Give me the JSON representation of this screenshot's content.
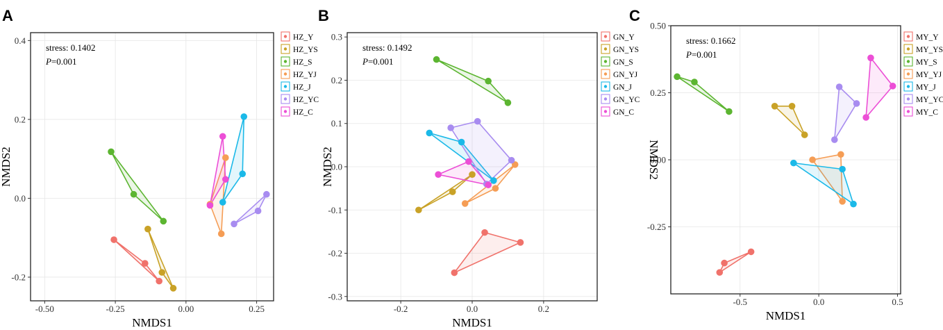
{
  "chart_data": [
    {
      "type": "scatter",
      "panel_label": "A",
      "xlabel": "NMDS1",
      "ylabel": "NMDS2",
      "xlim": [
        -0.55,
        0.31
      ],
      "ylim": [
        -0.26,
        0.42
      ],
      "xticks": [
        -0.5,
        -0.25,
        0.0,
        0.25
      ],
      "xtick_labels": [
        "-0.50",
        "-0.25",
        "0.00",
        "0.25"
      ],
      "yticks": [
        -0.2,
        0.0,
        0.2,
        0.4
      ],
      "ytick_labels": [
        "-0.2",
        "0.0",
        "0.2",
        "0.4"
      ],
      "stress_label": "stress: 0.1402",
      "p_letter": "P",
      "p_value": "=0.001",
      "legend_position": "outside-right-top",
      "series": [
        {
          "name": "HZ_Y",
          "color": "#f0726b",
          "points": [
            [
              -0.255,
              -0.105
            ],
            [
              -0.145,
              -0.165
            ],
            [
              -0.095,
              -0.21
            ]
          ]
        },
        {
          "name": "HZ_YS",
          "color": "#c9a227",
          "points": [
            [
              -0.135,
              -0.078
            ],
            [
              -0.085,
              -0.188
            ],
            [
              -0.045,
              -0.228
            ]
          ]
        },
        {
          "name": "HZ_S",
          "color": "#5cb531",
          "points": [
            [
              -0.265,
              0.118
            ],
            [
              -0.185,
              0.01
            ],
            [
              -0.08,
              -0.058
            ]
          ]
        },
        {
          "name": "HZ_YJ",
          "color": "#f59d55",
          "points": [
            [
              0.14,
              0.103
            ],
            [
              0.125,
              -0.09
            ],
            [
              0.085,
              -0.015
            ]
          ]
        },
        {
          "name": "HZ_J",
          "color": "#1bb9e8",
          "points": [
            [
              0.205,
              0.207
            ],
            [
              0.2,
              0.062
            ],
            [
              0.13,
              -0.01
            ]
          ]
        },
        {
          "name": "HZ_YC",
          "color": "#a88cf0",
          "points": [
            [
              0.285,
              0.01
            ],
            [
              0.255,
              -0.032
            ],
            [
              0.17,
              -0.065
            ]
          ]
        },
        {
          "name": "HZ_C",
          "color": "#ec4fd6",
          "points": [
            [
              0.13,
              0.157
            ],
            [
              0.14,
              0.048
            ],
            [
              0.085,
              -0.018
            ]
          ]
        }
      ]
    },
    {
      "type": "scatter",
      "panel_label": "B",
      "xlabel": "NMDS1",
      "ylabel": "NMDS2",
      "xlim": [
        -0.35,
        0.35
      ],
      "ylim": [
        -0.31,
        0.31
      ],
      "xticks": [
        -0.2,
        0.0,
        0.2
      ],
      "xtick_labels": [
        "-0.2",
        "0.0",
        "0.2"
      ],
      "yticks": [
        -0.3,
        -0.2,
        -0.1,
        0.0,
        0.1,
        0.2,
        0.3
      ],
      "ytick_labels": [
        "-0.3",
        "-0.2",
        "-0.1",
        "0.0",
        "0.1",
        "0.2",
        "0.3"
      ],
      "stress_label": "stress: 0.1492",
      "p_letter": "P",
      "p_value": "=0.001",
      "legend_position": "outside-right-top",
      "series": [
        {
          "name": "GN_Y",
          "color": "#f0726b",
          "points": [
            [
              -0.05,
              -0.245
            ],
            [
              0.035,
              -0.152
            ],
            [
              0.135,
              -0.175
            ]
          ]
        },
        {
          "name": "GN_YS",
          "color": "#c9a227",
          "points": [
            [
              -0.15,
              -0.1
            ],
            [
              -0.055,
              -0.058
            ],
            [
              0.0,
              -0.018
            ]
          ]
        },
        {
          "name": "GN_S",
          "color": "#5cb531",
          "points": [
            [
              -0.1,
              0.248
            ],
            [
              0.045,
              0.198
            ],
            [
              0.1,
              0.148
            ]
          ]
        },
        {
          "name": "GN_YJ",
          "color": "#f59d55",
          "points": [
            [
              0.12,
              0.005
            ],
            [
              0.065,
              -0.05
            ],
            [
              -0.02,
              -0.085
            ]
          ]
        },
        {
          "name": "GN_J",
          "color": "#1bb9e8",
          "points": [
            [
              -0.12,
              0.078
            ],
            [
              -0.03,
              0.057
            ],
            [
              0.06,
              -0.032
            ]
          ]
        },
        {
          "name": "GN_YC",
          "color": "#a88cf0",
          "points": [
            [
              -0.06,
              0.09
            ],
            [
              0.015,
              0.105
            ],
            [
              0.11,
              0.015
            ],
            [
              0.04,
              -0.04
            ]
          ]
        },
        {
          "name": "GN_C",
          "color": "#ec4fd6",
          "points": [
            [
              -0.095,
              -0.018
            ],
            [
              -0.01,
              0.012
            ],
            [
              0.045,
              -0.042
            ]
          ]
        }
      ]
    },
    {
      "type": "scatter",
      "panel_label": "C",
      "xlabel": "NMDS1",
      "ylabel": "NMDS2",
      "xlim": [
        -0.94,
        0.52
      ],
      "ylim": [
        -0.5,
        0.5
      ],
      "xticks": [
        -0.5,
        0.0,
        0.5
      ],
      "xtick_labels": [
        "-0.5",
        "0.0",
        "0.5"
      ],
      "yticks": [
        -0.25,
        0.0,
        0.25,
        0.5
      ],
      "ytick_labels": [
        "-0.25",
        "0.00",
        "0.25",
        "0.50"
      ],
      "stress_label": "stress: 0.1662",
      "p_letter": "P",
      "p_value": "=0.001",
      "legend_position": "outside-right-top",
      "series": [
        {
          "name": "MY_Y",
          "color": "#f0726b",
          "points": [
            [
              -0.63,
              -0.42
            ],
            [
              -0.6,
              -0.385
            ],
            [
              -0.43,
              -0.343
            ]
          ]
        },
        {
          "name": "MY_YS",
          "color": "#c9a227",
          "points": [
            [
              -0.28,
              0.2
            ],
            [
              -0.17,
              0.2
            ],
            [
              -0.09,
              0.093
            ]
          ]
        },
        {
          "name": "MY_S",
          "color": "#5cb531",
          "points": [
            [
              -0.9,
              0.31
            ],
            [
              -0.79,
              0.29
            ],
            [
              -0.57,
              0.18
            ]
          ]
        },
        {
          "name": "MY_YJ",
          "color": "#f59d55",
          "points": [
            [
              -0.04,
              0.0
            ],
            [
              0.14,
              0.02
            ],
            [
              0.15,
              -0.155
            ]
          ]
        },
        {
          "name": "MY_J",
          "color": "#1bb9e8",
          "points": [
            [
              -0.16,
              -0.012
            ],
            [
              0.15,
              -0.035
            ],
            [
              0.22,
              -0.165
            ]
          ]
        },
        {
          "name": "MY_YC",
          "color": "#a88cf0",
          "points": [
            [
              0.13,
              0.272
            ],
            [
              0.24,
              0.21
            ],
            [
              0.1,
              0.075
            ]
          ]
        },
        {
          "name": "MY_C",
          "color": "#ec4fd6",
          "points": [
            [
              0.33,
              0.38
            ],
            [
              0.47,
              0.275
            ],
            [
              0.3,
              0.158
            ]
          ]
        }
      ]
    }
  ]
}
